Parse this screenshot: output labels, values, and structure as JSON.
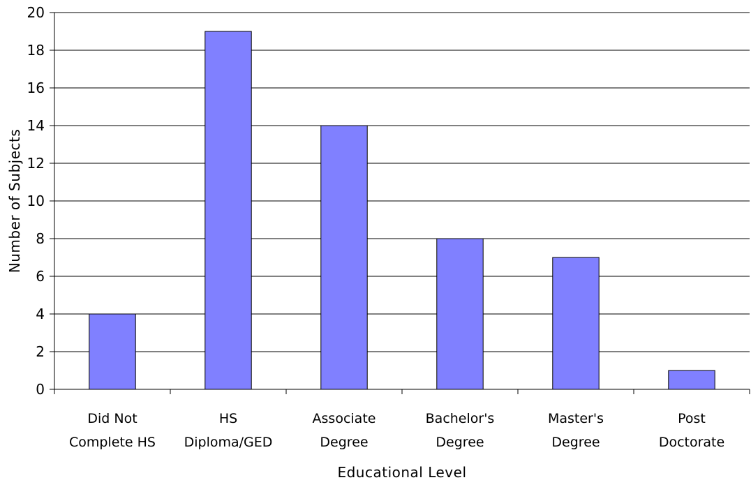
{
  "chart_data": {
    "type": "bar",
    "categories": [
      [
        "Did Not",
        "Complete HS"
      ],
      [
        "HS",
        "Diploma/GED"
      ],
      [
        "Associate",
        "Degree"
      ],
      [
        "Bachelor's",
        "Degree"
      ],
      [
        "Master's",
        "Degree"
      ],
      [
        "Post",
        "Doctorate"
      ]
    ],
    "values": [
      4,
      19,
      14,
      8,
      7,
      1
    ],
    "ylim": [
      0,
      20
    ],
    "yticks": [
      0,
      2,
      4,
      6,
      8,
      10,
      12,
      14,
      16,
      18,
      20
    ],
    "xlabel": "Educational Level",
    "ylabel": "Number of Subjects",
    "grid": true,
    "bar_color": "#8080ff",
    "bar_edge_color": "#000000",
    "grid_color": "#000000"
  }
}
